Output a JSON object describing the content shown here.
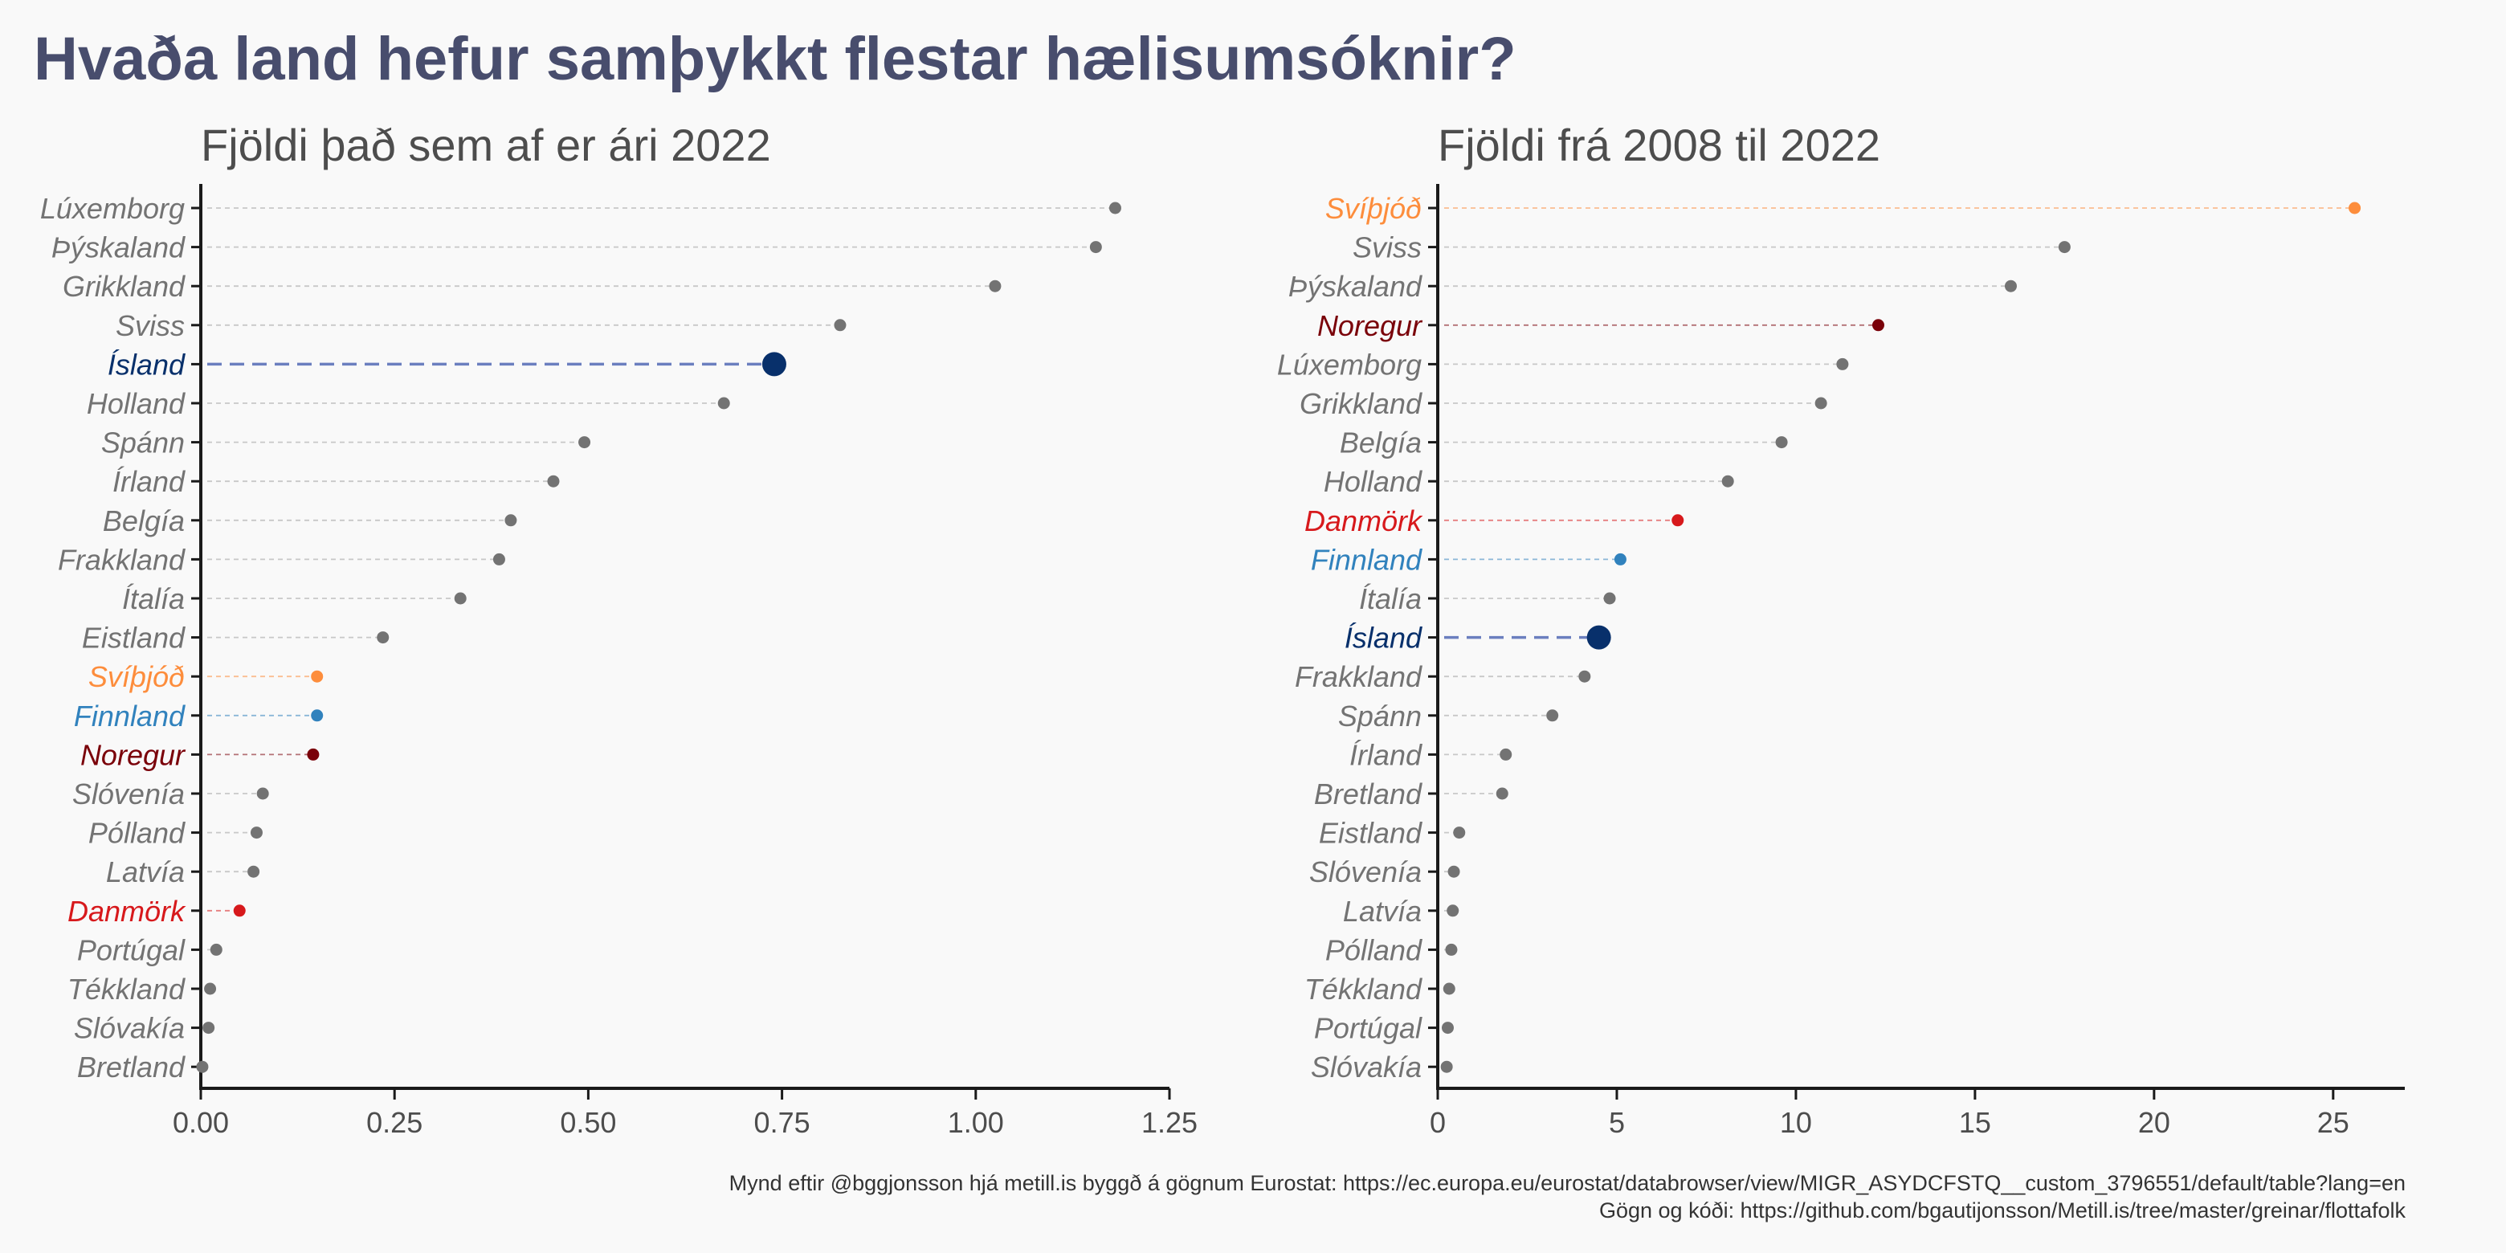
{
  "title": "Hvaða land hefur samþykkt flestar hælisumsóknir?",
  "caption": {
    "line1": "Mynd eftir @bggjonsson hjá metill.is byggð á gögnum Eurostat: https://ec.europa.eu/eurostat/databrowser/view/MIGR_ASYDCFSTQ__custom_3796551/default/table?lang=en",
    "line2": "Gögn og kóði: https://github.com/bgautijonsson/Metill.is/tree/master/greinar/flottafolk"
  },
  "colors": {
    "title": "#484d6d",
    "default_point": "#737373",
    "default_line": "#c8c8c8",
    "text_default": "#737373",
    "Ísland": "#08306b",
    "Svíþjóð": "#fd8d3c",
    "Finnland": "#3182bd",
    "Noregur": "#7a0109",
    "Danmörk": "#d7191c",
    "Ísland_line": "#6b7fbf"
  },
  "chart_data": [
    {
      "type": "scatter",
      "subtitle": "Fjöldi það sem af er ári 2022",
      "xlim": [
        0,
        1.25
      ],
      "xticks": [
        0,
        0.25,
        0.5,
        0.75,
        1.0
      ],
      "xtick_labels": [
        "0.00",
        "0.25",
        "0.50",
        "0.75",
        "1.00",
        "1.25"
      ],
      "xtick_values": [
        0,
        0.25,
        0.5,
        0.75,
        1.0,
        1.25
      ],
      "grid": false,
      "categories": [
        "Lúxemborg",
        "Þýskaland",
        "Grikkland",
        "Sviss",
        "Ísland",
        "Holland",
        "Spánn",
        "Írland",
        "Belgía",
        "Frakkland",
        "Ítalía",
        "Eistland",
        "Svíþjóð",
        "Finnland",
        "Noregur",
        "Slóvenía",
        "Pólland",
        "Latvía",
        "Danmörk",
        "Portúgal",
        "Tékkland",
        "Slóvakía",
        "Bretland"
      ],
      "values": [
        1.18,
        1.155,
        1.025,
        0.825,
        0.74,
        0.675,
        0.495,
        0.455,
        0.4,
        0.385,
        0.335,
        0.235,
        0.15,
        0.15,
        0.145,
        0.08,
        0.072,
        0.068,
        0.05,
        0.02,
        0.012,
        0.01,
        0.002
      ]
    },
    {
      "type": "scatter",
      "subtitle": "Fjöldi frá 2008 til 2022",
      "xlim": [
        0,
        27
      ],
      "xtick_labels": [
        "0",
        "5",
        "10",
        "15",
        "20",
        "25"
      ],
      "xtick_values": [
        0,
        5,
        10,
        15,
        20,
        25
      ],
      "grid": false,
      "categories": [
        "Svíþjóð",
        "Sviss",
        "Þýskaland",
        "Noregur",
        "Lúxemborg",
        "Grikkland",
        "Belgía",
        "Holland",
        "Danmörk",
        "Finnland",
        "Ítalía",
        "Ísland",
        "Frakkland",
        "Spánn",
        "Írland",
        "Bretland",
        "Eistland",
        "Slóvenía",
        "Latvía",
        "Pólland",
        "Tékkland",
        "Portúgal",
        "Slóvakía"
      ],
      "values": [
        25.6,
        17.5,
        16.0,
        12.3,
        11.3,
        10.7,
        9.6,
        8.1,
        6.7,
        5.1,
        4.8,
        4.5,
        4.1,
        3.2,
        1.9,
        1.8,
        0.6,
        0.45,
        0.42,
        0.38,
        0.32,
        0.28,
        0.25
      ]
    }
  ]
}
